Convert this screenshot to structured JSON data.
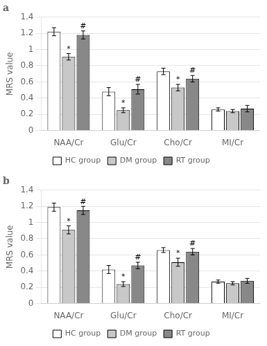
{
  "chart_data": [
    {
      "type": "bar",
      "title": "a",
      "categories": [
        "NAA/Cr",
        "Glu/Cr",
        "Cho/Cr",
        "MI/Cr"
      ],
      "series": [
        {
          "name": "HC group",
          "color": "white",
          "values": [
            1.22,
            0.48,
            0.73,
            0.26
          ],
          "errors": [
            0.05,
            0.05,
            0.04,
            0.02
          ],
          "annotations": [
            null,
            null,
            null,
            null
          ]
        },
        {
          "name": "DM group",
          "color": "#c8c8c8",
          "values": [
            0.91,
            0.25,
            0.53,
            0.24
          ],
          "errors": [
            0.04,
            0.03,
            0.04,
            0.02
          ],
          "annotations": [
            "*",
            "*",
            "*",
            null
          ]
        },
        {
          "name": "RT group",
          "color": "#888888",
          "values": [
            1.18,
            0.51,
            0.64,
            0.27
          ],
          "errors": [
            0.05,
            0.06,
            0.04,
            0.04
          ],
          "annotations": [
            "#",
            "#",
            "#",
            null
          ]
        }
      ],
      "ylabel": "MRS value",
      "ylim": [
        0,
        1.4
      ],
      "yticks": [
        0,
        0.2,
        0.4,
        0.6,
        0.8,
        1,
        1.2,
        1.4
      ],
      "grid": true,
      "legend": "bottom"
    },
    {
      "type": "bar",
      "title": "b",
      "categories": [
        "NAA/Cr",
        "Glu/Cr",
        "Cho/Cr",
        "MI/Cr"
      ],
      "series": [
        {
          "name": "HC group",
          "color": "white",
          "values": [
            1.19,
            0.42,
            0.66,
            0.27
          ],
          "errors": [
            0.05,
            0.05,
            0.03,
            0.02
          ],
          "annotations": [
            null,
            null,
            null,
            null
          ]
        },
        {
          "name": "DM group",
          "color": "#c8c8c8",
          "values": [
            0.91,
            0.24,
            0.51,
            0.25
          ],
          "errors": [
            0.05,
            0.03,
            0.05,
            0.02
          ],
          "annotations": [
            "*",
            "*",
            "*",
            null
          ]
        },
        {
          "name": "RT group",
          "color": "#888888",
          "values": [
            1.15,
            0.47,
            0.64,
            0.28
          ],
          "errors": [
            0.05,
            0.04,
            0.04,
            0.03
          ],
          "annotations": [
            "#",
            "#",
            "#",
            null
          ]
        }
      ],
      "ylabel": "MRS value",
      "ylim": [
        0,
        1.4
      ],
      "yticks": [
        0,
        0.2,
        0.4,
        0.6,
        0.8,
        1,
        1.2,
        1.4
      ],
      "grid": true,
      "legend": "bottom"
    }
  ]
}
